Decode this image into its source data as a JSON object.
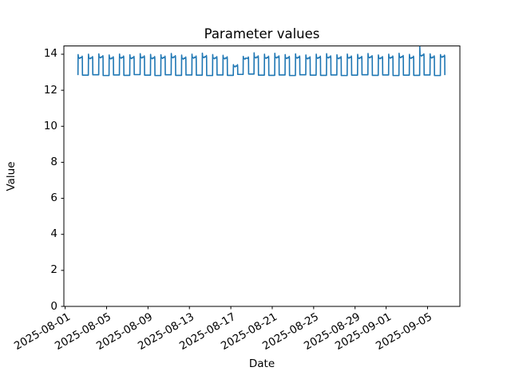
{
  "figure": {
    "title": "Parameter values",
    "background": "#ffffff",
    "spine_color": "#000000",
    "tick_color": "#000000"
  },
  "chart_data": {
    "type": "line",
    "title": "Parameter values",
    "xlabel": "Date",
    "ylabel": "Value",
    "grid": false,
    "legend": "none",
    "ylim": [
      0,
      14.46
    ],
    "xlim": [
      "2025-07-31T21:00:00Z",
      "2025-09-08T03:00:00Z"
    ],
    "x_tick_labels": [
      "2025-08-01",
      "2025-08-05",
      "2025-08-09",
      "2025-08-13",
      "2025-08-17",
      "2025-08-21",
      "2025-08-25",
      "2025-08-29",
      "2025-09-01",
      "2025-09-05"
    ],
    "y_tick_labels": [
      0,
      2,
      4,
      6,
      8,
      10,
      12,
      14
    ],
    "series": [
      {
        "name": "parameter-values",
        "color": "#1f77b4",
        "line_width": 1.6,
        "pattern": "daily square wave between ~12.8 and ~14.0",
        "days": [
          {
            "d": "2025-08-02",
            "lo": 12.84,
            "hi": 13.82,
            "pk": 13.98
          },
          {
            "d": "2025-08-03",
            "lo": 12.86,
            "hi": 13.8,
            "pk": 14.0
          },
          {
            "d": "2025-08-04",
            "lo": 12.82,
            "hi": 13.85,
            "pk": 14.02
          },
          {
            "d": "2025-08-05",
            "lo": 12.85,
            "hi": 13.79,
            "pk": 13.96
          },
          {
            "d": "2025-08-06",
            "lo": 12.83,
            "hi": 13.83,
            "pk": 14.01
          },
          {
            "d": "2025-08-07",
            "lo": 12.87,
            "hi": 13.81,
            "pk": 13.97
          },
          {
            "d": "2025-08-08",
            "lo": 12.84,
            "hi": 13.84,
            "pk": 14.03
          },
          {
            "d": "2025-08-09",
            "lo": 12.82,
            "hi": 13.8,
            "pk": 13.99
          },
          {
            "d": "2025-08-10",
            "lo": 12.86,
            "hi": 13.82,
            "pk": 13.97
          },
          {
            "d": "2025-08-11",
            "lo": 12.83,
            "hi": 13.85,
            "pk": 14.04
          },
          {
            "d": "2025-08-12",
            "lo": 12.85,
            "hi": 13.78,
            "pk": 13.95
          },
          {
            "d": "2025-08-13",
            "lo": 12.84,
            "hi": 13.83,
            "pk": 14.0
          },
          {
            "d": "2025-08-14",
            "lo": 12.82,
            "hi": 13.86,
            "pk": 14.06
          },
          {
            "d": "2025-08-15",
            "lo": 12.85,
            "hi": 13.8,
            "pk": 13.98
          },
          {
            "d": "2025-08-16",
            "lo": 12.83,
            "hi": 13.79,
            "pk": 13.94
          },
          {
            "d": "2025-08-17",
            "lo": 12.88,
            "hi": 13.35,
            "pk": 13.42
          },
          {
            "d": "2025-08-18",
            "lo": 12.9,
            "hi": 13.78,
            "pk": 13.88,
            "s": 0.2,
            "e": 0.72
          },
          {
            "d": "2025-08-19",
            "lo": 12.84,
            "hi": 13.84,
            "pk": 14.08
          },
          {
            "d": "2025-08-20",
            "lo": 12.83,
            "hi": 13.82,
            "pk": 14.0
          },
          {
            "d": "2025-08-21",
            "lo": 12.85,
            "hi": 13.84,
            "pk": 14.05
          },
          {
            "d": "2025-08-22",
            "lo": 12.82,
            "hi": 13.81,
            "pk": 13.98
          },
          {
            "d": "2025-08-23",
            "lo": 12.86,
            "hi": 13.83,
            "pk": 14.02
          },
          {
            "d": "2025-08-24",
            "lo": 12.84,
            "hi": 13.79,
            "pk": 13.96
          },
          {
            "d": "2025-08-25",
            "lo": 12.83,
            "hi": 13.82,
            "pk": 14.0
          },
          {
            "d": "2025-08-26",
            "lo": 12.85,
            "hi": 13.84,
            "pk": 14.03
          },
          {
            "d": "2025-08-27",
            "lo": 12.82,
            "hi": 13.8,
            "pk": 13.97
          },
          {
            "d": "2025-08-28",
            "lo": 12.84,
            "hi": 13.83,
            "pk": 14.01
          },
          {
            "d": "2025-08-29",
            "lo": 12.86,
            "hi": 13.81,
            "pk": 13.99
          },
          {
            "d": "2025-08-30",
            "lo": 12.83,
            "hi": 13.85,
            "pk": 14.04
          },
          {
            "d": "2025-08-31",
            "lo": 12.85,
            "hi": 13.8,
            "pk": 13.96
          },
          {
            "d": "2025-09-01",
            "lo": 12.82,
            "hi": 13.83,
            "pk": 14.0
          },
          {
            "d": "2025-09-02",
            "lo": 12.84,
            "hi": 13.86,
            "pk": 14.05
          },
          {
            "d": "2025-09-03",
            "lo": 12.83,
            "hi": 13.82,
            "pk": 13.99
          },
          {
            "d": "2025-09-04",
            "lo": 12.85,
            "hi": 13.95,
            "pk": 14.42
          },
          {
            "d": "2025-09-05",
            "lo": 12.82,
            "hi": 13.84,
            "pk": 14.02
          },
          {
            "d": "2025-09-06",
            "lo": 12.84,
            "hi": 13.88,
            "pk": 13.98
          }
        ]
      }
    ]
  }
}
